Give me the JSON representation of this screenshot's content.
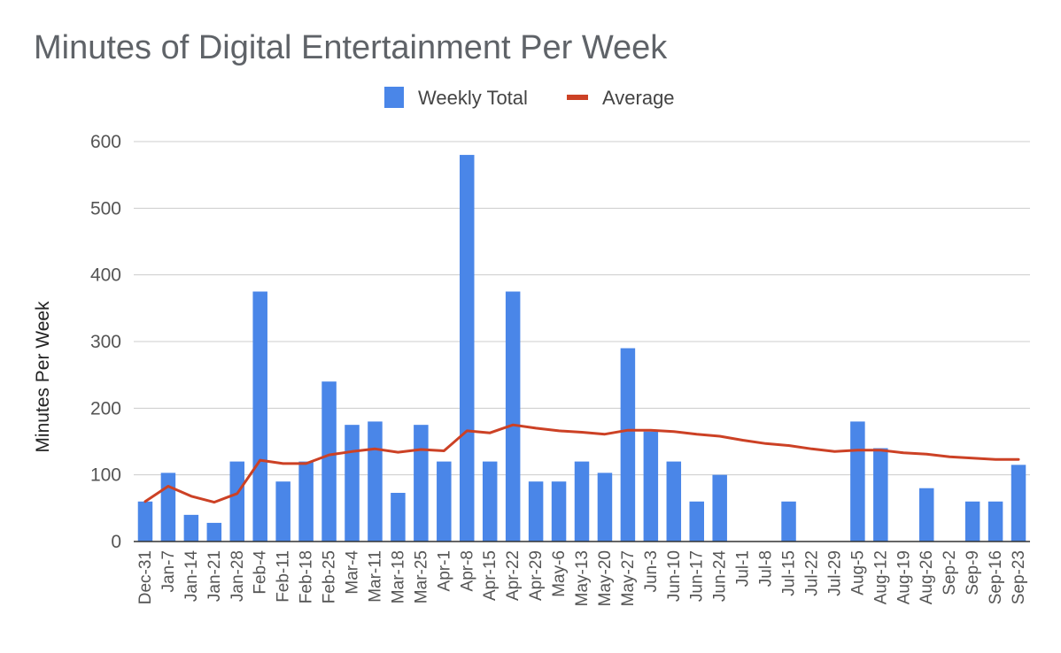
{
  "chart_data": {
    "type": "bar",
    "title": "Minutes of Digital Entertainment Per Week",
    "xlabel": "",
    "ylabel": "Minutes Per Week",
    "ylim": [
      0,
      600
    ],
    "yticks": [
      0,
      100,
      200,
      300,
      400,
      500,
      600
    ],
    "grid": true,
    "legend_position": "top-center",
    "categories": [
      "Dec-31",
      "Jan-7",
      "Jan-14",
      "Jan-21",
      "Jan-28",
      "Feb-4",
      "Feb-11",
      "Feb-18",
      "Feb-25",
      "Mar-4",
      "Mar-11",
      "Mar-18",
      "Mar-25",
      "Apr-1",
      "Apr-8",
      "Apr-15",
      "Apr-22",
      "Apr-29",
      "May-6",
      "May-13",
      "May-20",
      "May-27",
      "Jun-3",
      "Jun-10",
      "Jun-17",
      "Jun-24",
      "Jul-1",
      "Jul-8",
      "Jul-15",
      "Jul-22",
      "Jul-29",
      "Aug-5",
      "Aug-12",
      "Aug-19",
      "Aug-26",
      "Sep-2",
      "Sep-9",
      "Sep-16",
      "Sep-23"
    ],
    "series": [
      {
        "name": "Weekly Total",
        "kind": "bar",
        "color": "#4a86e8",
        "values": [
          60,
          103,
          40,
          28,
          120,
          375,
          90,
          120,
          240,
          175,
          180,
          73,
          175,
          120,
          580,
          120,
          375,
          90,
          90,
          120,
          103,
          290,
          165,
          120,
          60,
          100,
          0,
          0,
          60,
          0,
          0,
          180,
          140,
          0,
          80,
          0,
          60,
          60,
          115
        ]
      },
      {
        "name": "Average",
        "kind": "line",
        "color": "#cc4125",
        "values": [
          60,
          83,
          68,
          59,
          72,
          122,
          117,
          117,
          130,
          135,
          139,
          134,
          138,
          136,
          166,
          163,
          175,
          170,
          166,
          164,
          161,
          167,
          167,
          165,
          161,
          158,
          152,
          147,
          144,
          139,
          135,
          137,
          137,
          133,
          131,
          127,
          125,
          123,
          123
        ]
      }
    ]
  }
}
